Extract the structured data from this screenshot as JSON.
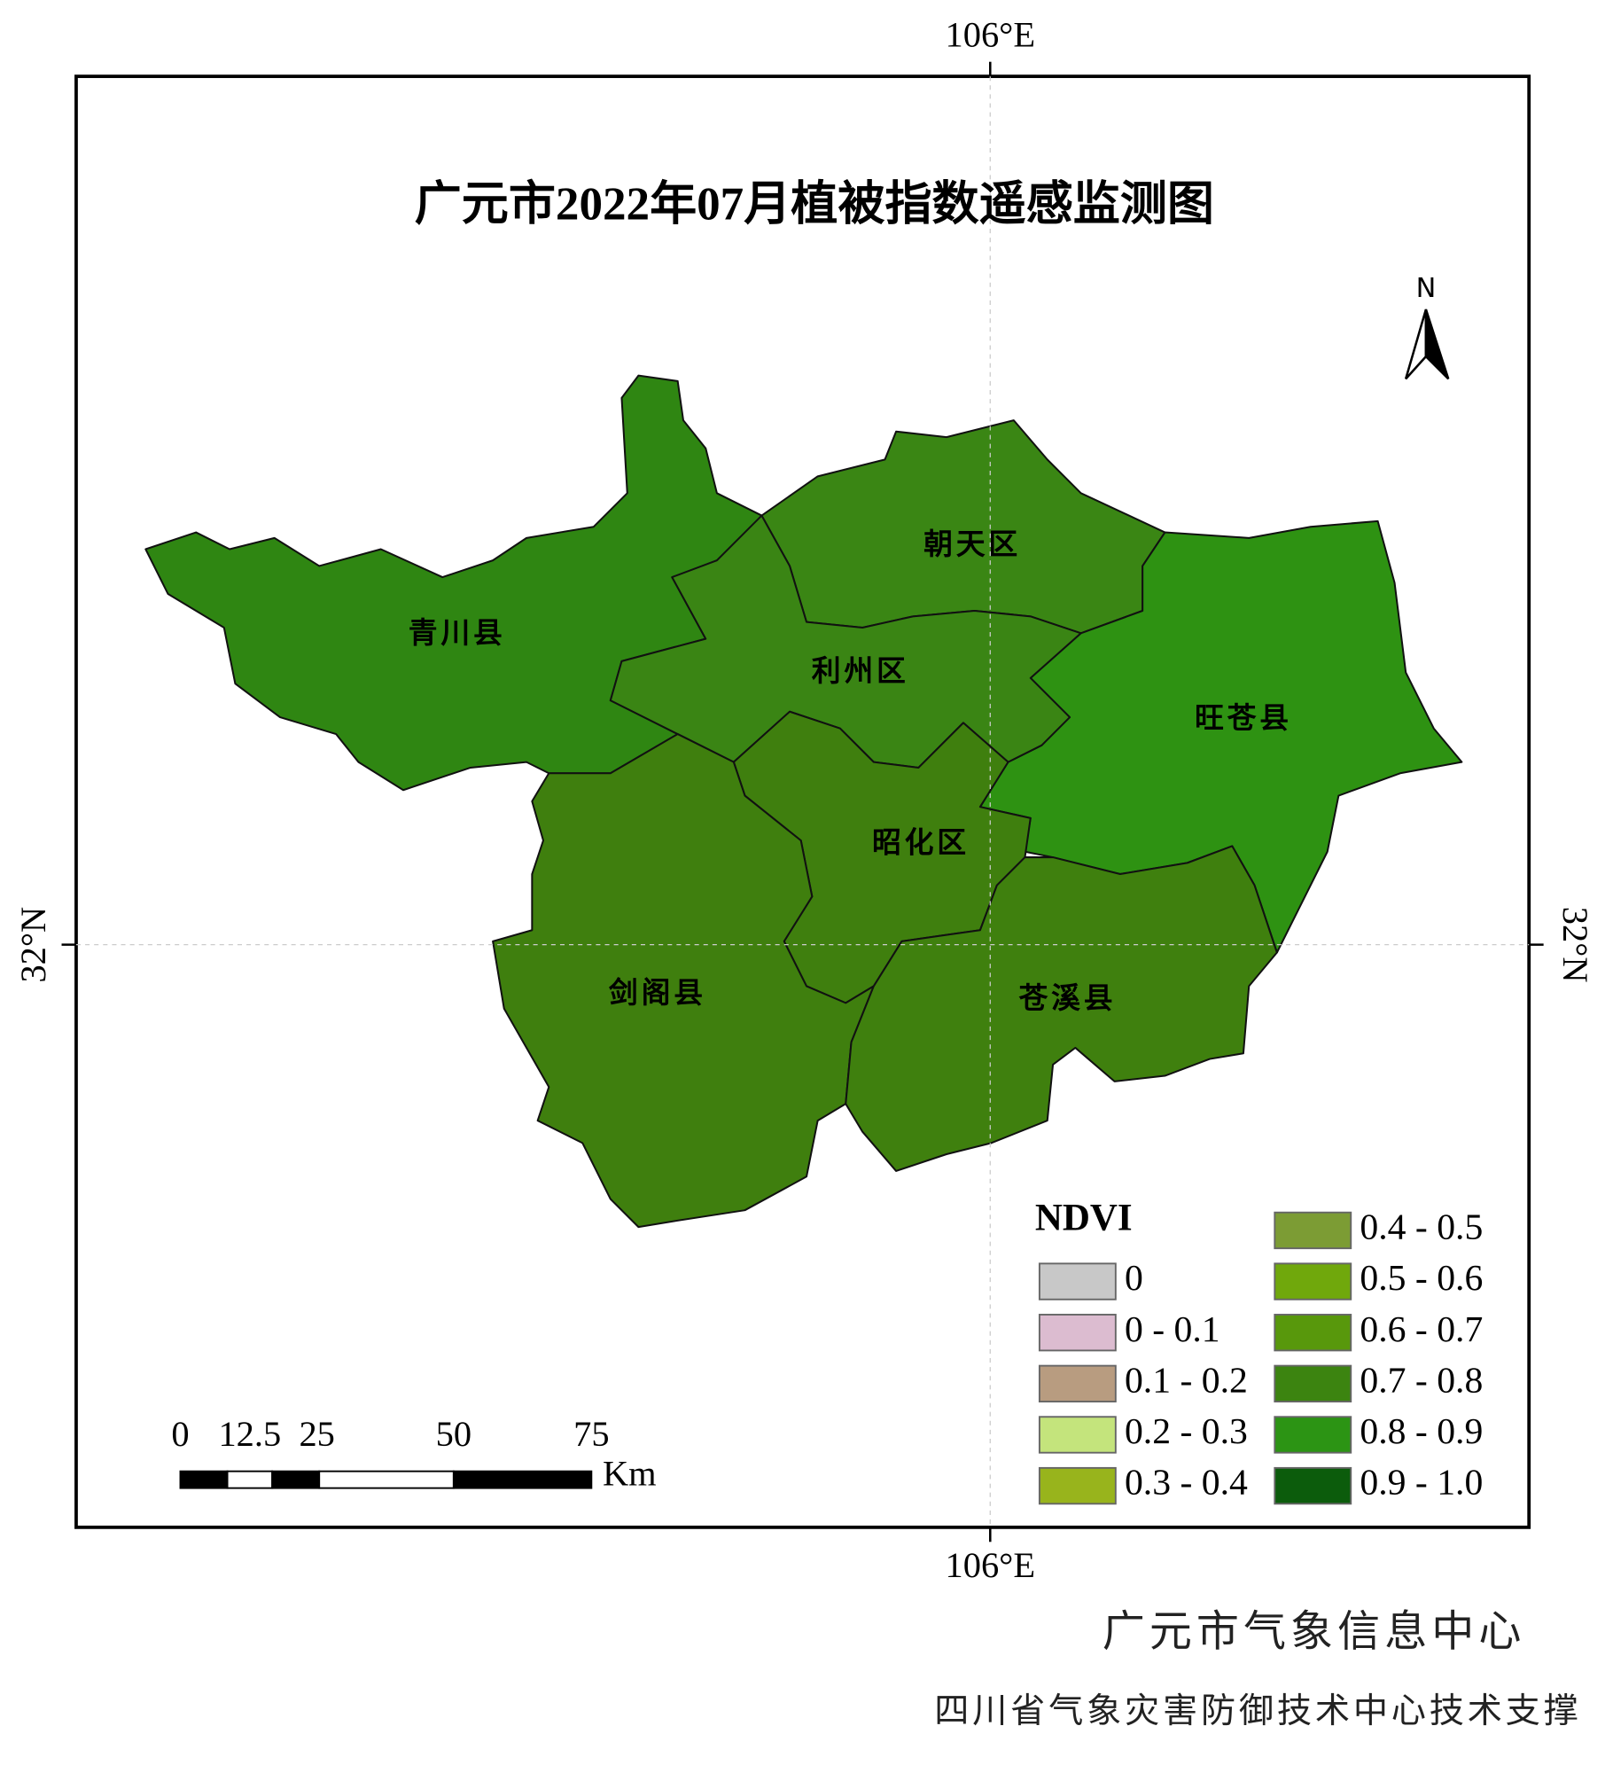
{
  "title": "广元市2022年07月植被指数遥感监测图",
  "graticule": {
    "top": "106°E",
    "bottom": "106°E",
    "left": "32°N",
    "right": "32°N"
  },
  "north": "N",
  "districts": [
    "青川县",
    "朝天区",
    "利州区",
    "旺苍县",
    "昭化区",
    "剑阁县",
    "苍溪县"
  ],
  "legend": {
    "title": "NDVI",
    "items": [
      {
        "label": "0",
        "color": "#c8c8c8"
      },
      {
        "label": "0 - 0.1",
        "color": "#dcbcd0"
      },
      {
        "label": "0.1 - 0.2",
        "color": "#b89c80"
      },
      {
        "label": "0.2 - 0.3",
        "color": "#c4e47c"
      },
      {
        "label": "0.3 - 0.4",
        "color": "#98b41c"
      },
      {
        "label": "0.4 - 0.5",
        "color": "#7c9c34"
      },
      {
        "label": "0.5 - 0.6",
        "color": "#70a80c"
      },
      {
        "label": "0.6 - 0.7",
        "color": "#58980c"
      },
      {
        "label": "0.7 - 0.8",
        "color": "#3c8410"
      },
      {
        "label": "0.8 - 0.9",
        "color": "#2c9414"
      },
      {
        "label": "0.9 - 1.0",
        "color": "#0c5c0c"
      }
    ]
  },
  "scale_bar": {
    "labels": [
      "0",
      "12.5",
      "25",
      "50",
      "75"
    ],
    "unit": "Km"
  },
  "credits": [
    "广元市气象信息中心",
    "四川省气象灾害防御技术中心技术支撑"
  ]
}
